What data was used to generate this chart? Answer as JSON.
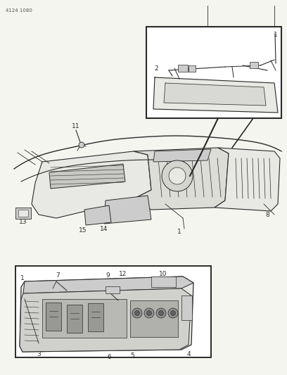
{
  "bg_color": "#f5f5f0",
  "line_color": "#2a2a2a",
  "gray_fill": "#cccccc",
  "light_gray": "#e8e8e4",
  "title_code": "4124 1080",
  "fig_width": 4.08,
  "fig_height": 5.33,
  "dpi": 100
}
